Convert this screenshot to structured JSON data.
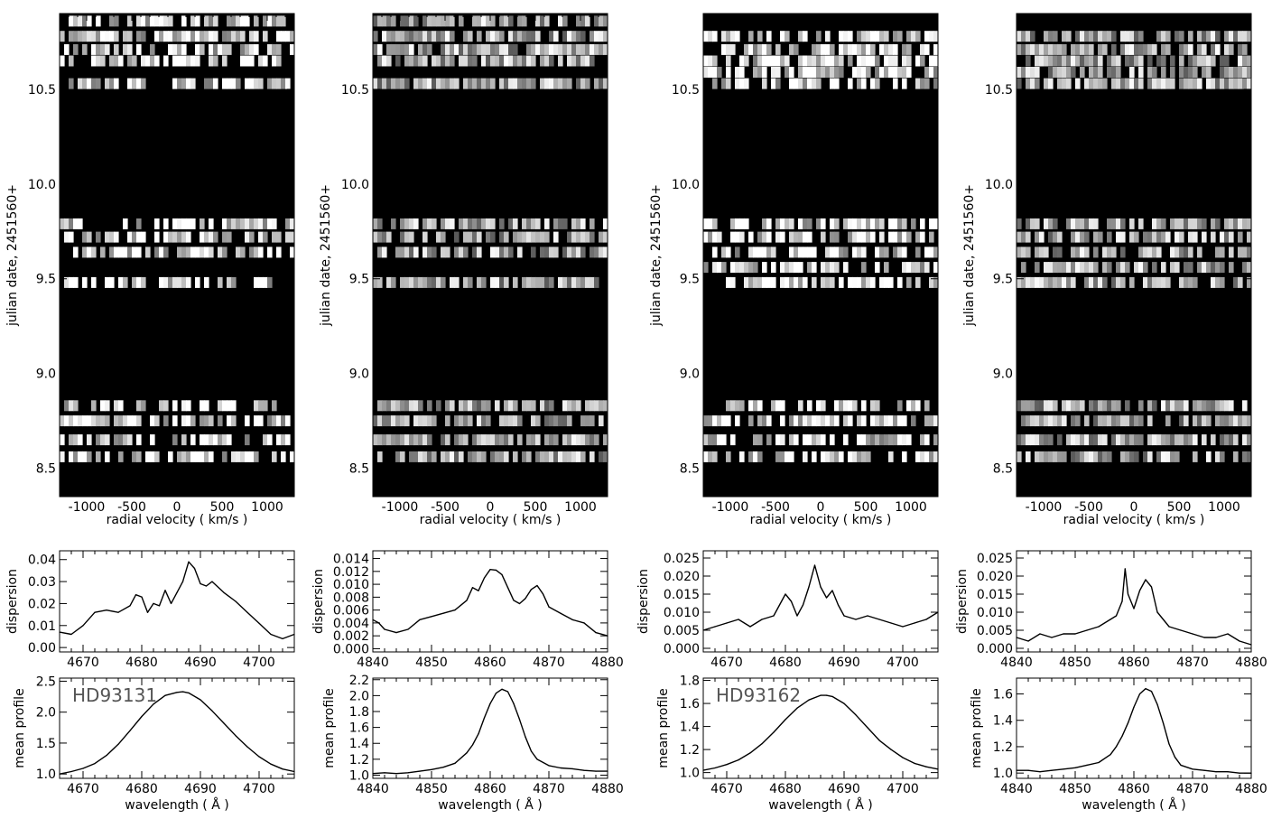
{
  "chart_data": [
    {
      "id": "heatmap-1",
      "type": "heatmap",
      "xlabel": "radial velocity ( km/s )",
      "ylabel": "julian date, 2451560+",
      "xlim": [
        -1300,
        1300
      ],
      "ylim": [
        8.35,
        10.9
      ],
      "xticks": [
        -1000,
        -500,
        0,
        500,
        1000
      ],
      "yticks": [
        8.5,
        9.0,
        9.5,
        10.0,
        10.5
      ],
      "ytick_labels": [
        "8.5",
        "9.0",
        "9.5",
        "10.0",
        "10.5"
      ],
      "rows": [
        8.56,
        8.65,
        8.75,
        8.83,
        9.48,
        9.64,
        9.72,
        9.79,
        10.53,
        10.65,
        10.71,
        10.78,
        10.86
      ],
      "colormap": "gray"
    },
    {
      "id": "heatmap-2",
      "type": "heatmap",
      "xlabel": "radial velocity ( km/s )",
      "ylabel": "julian date, 2451560+",
      "xlim": [
        -1300,
        1300
      ],
      "ylim": [
        8.35,
        10.9
      ],
      "xticks": [
        -1000,
        -500,
        0,
        500,
        1000
      ],
      "yticks": [
        8.5,
        9.0,
        9.5,
        10.0,
        10.5
      ],
      "ytick_labels": [
        "8.5",
        "9.0",
        "9.5",
        "10.0",
        "10.5"
      ],
      "rows": [
        8.56,
        8.65,
        8.75,
        8.83,
        9.48,
        9.64,
        9.72,
        9.79,
        10.53,
        10.65,
        10.71,
        10.78,
        10.86
      ],
      "colormap": "gray"
    },
    {
      "id": "heatmap-3",
      "type": "heatmap",
      "xlabel": "radial velocity ( km/s )",
      "ylabel": "julian date, 2451560+",
      "xlim": [
        -1300,
        1300
      ],
      "ylim": [
        8.35,
        10.9
      ],
      "xticks": [
        -1000,
        -500,
        0,
        500,
        1000
      ],
      "yticks": [
        8.5,
        9.0,
        9.5,
        10.0,
        10.5
      ],
      "ytick_labels": [
        "8.5",
        "9.0",
        "9.5",
        "10.0",
        "10.5"
      ],
      "rows": [
        8.56,
        8.65,
        8.75,
        8.83,
        9.48,
        9.56,
        9.64,
        9.72,
        9.79,
        10.53,
        10.59,
        10.65,
        10.71,
        10.78
      ],
      "colormap": "gray"
    },
    {
      "id": "heatmap-4",
      "type": "heatmap",
      "xlabel": "radial velocity ( km/s )",
      "ylabel": "julian date, 2451560+",
      "xlim": [
        -1300,
        1300
      ],
      "ylim": [
        8.35,
        10.9
      ],
      "xticks": [
        -1000,
        -500,
        0,
        500,
        1000
      ],
      "yticks": [
        8.5,
        9.0,
        9.5,
        10.0,
        10.5
      ],
      "ytick_labels": [
        "8.5",
        "9.0",
        "9.5",
        "10.0",
        "10.5"
      ],
      "rows": [
        8.56,
        8.65,
        8.75,
        8.83,
        9.48,
        9.56,
        9.64,
        9.72,
        9.79,
        10.53,
        10.59,
        10.65,
        10.71,
        10.78
      ],
      "colormap": "gray"
    },
    {
      "id": "dispersion-1",
      "type": "line",
      "xlabel": "",
      "ylabel": "dispersion",
      "xlim": [
        4666,
        4706
      ],
      "ylim": [
        -0.002,
        0.044
      ],
      "xticks": [
        4670,
        4680,
        4690,
        4700
      ],
      "xtick_labels": [
        "4670",
        "4680",
        "4690",
        "4700"
      ],
      "yticks": [
        0.0,
        0.01,
        0.02,
        0.03,
        0.04
      ],
      "ytick_labels": [
        "0.00",
        "0.01",
        "0.02",
        "0.03",
        "0.04"
      ],
      "x": [
        4666,
        4668,
        4670,
        4672,
        4674,
        4676,
        4678,
        4679,
        4680,
        4681,
        4682,
        4683,
        4684,
        4685,
        4686,
        4687,
        4688,
        4689,
        4690,
        4691,
        4692,
        4694,
        4696,
        4698,
        4700,
        4702,
        4704,
        4706
      ],
      "y": [
        0.007,
        0.006,
        0.01,
        0.016,
        0.017,
        0.016,
        0.019,
        0.024,
        0.023,
        0.016,
        0.02,
        0.019,
        0.026,
        0.02,
        0.025,
        0.03,
        0.039,
        0.036,
        0.029,
        0.028,
        0.03,
        0.025,
        0.021,
        0.016,
        0.011,
        0.006,
        0.004,
        0.006
      ]
    },
    {
      "id": "dispersion-2",
      "type": "line",
      "xlabel": "",
      "ylabel": "dispersion",
      "xlim": [
        4840,
        4880
      ],
      "ylim": [
        -0.0005,
        0.0152
      ],
      "xticks": [
        4840,
        4850,
        4860,
        4870,
        4880
      ],
      "xtick_labels": [
        "4840",
        "4850",
        "4860",
        "4870",
        "4880"
      ],
      "yticks": [
        0.0,
        0.002,
        0.004,
        0.006,
        0.008,
        0.01,
        0.012,
        0.014
      ],
      "ytick_labels": [
        "0.000",
        "0.002",
        "0.004",
        "0.006",
        "0.008",
        "0.010",
        "0.012",
        "0.014"
      ],
      "x": [
        4840,
        4841,
        4842,
        4844,
        4846,
        4848,
        4850,
        4852,
        4854,
        4856,
        4857,
        4858,
        4859,
        4860,
        4861,
        4862,
        4863,
        4864,
        4865,
        4866,
        4867,
        4868,
        4869,
        4870,
        4872,
        4874,
        4876,
        4878,
        4880
      ],
      "y": [
        0.0045,
        0.004,
        0.003,
        0.0025,
        0.003,
        0.0045,
        0.005,
        0.0055,
        0.006,
        0.0075,
        0.0095,
        0.009,
        0.011,
        0.0123,
        0.0122,
        0.0115,
        0.0095,
        0.0075,
        0.007,
        0.0078,
        0.0092,
        0.0098,
        0.0085,
        0.0065,
        0.0055,
        0.0045,
        0.004,
        0.0025,
        0.002
      ]
    },
    {
      "id": "dispersion-3",
      "type": "line",
      "xlabel": "",
      "ylabel": "dispersion",
      "xlim": [
        4666,
        4706
      ],
      "ylim": [
        -0.001,
        0.027
      ],
      "xticks": [
        4670,
        4680,
        4690,
        4700
      ],
      "xtick_labels": [
        "4670",
        "4680",
        "4690",
        "4700"
      ],
      "yticks": [
        0.0,
        0.005,
        0.01,
        0.015,
        0.02,
        0.025
      ],
      "ytick_labels": [
        "0.000",
        "0.005",
        "0.010",
        "0.015",
        "0.020",
        "0.025"
      ],
      "x": [
        4666,
        4668,
        4670,
        4672,
        4674,
        4676,
        4678,
        4679,
        4680,
        4681,
        4682,
        4683,
        4684,
        4685,
        4686,
        4687,
        4688,
        4689,
        4690,
        4692,
        4694,
        4696,
        4698,
        4700,
        4702,
        4704,
        4706
      ],
      "y": [
        0.005,
        0.006,
        0.007,
        0.008,
        0.006,
        0.008,
        0.009,
        0.012,
        0.015,
        0.013,
        0.009,
        0.012,
        0.017,
        0.023,
        0.017,
        0.014,
        0.016,
        0.012,
        0.009,
        0.008,
        0.009,
        0.008,
        0.007,
        0.006,
        0.007,
        0.008,
        0.01
      ]
    },
    {
      "id": "dispersion-4",
      "type": "line",
      "xlabel": "",
      "ylabel": "dispersion",
      "xlim": [
        4840,
        4880
      ],
      "ylim": [
        -0.001,
        0.027
      ],
      "xticks": [
        4840,
        4850,
        4860,
        4870,
        4880
      ],
      "xtick_labels": [
        "4840",
        "4850",
        "4860",
        "4870",
        "4880"
      ],
      "yticks": [
        0.0,
        0.005,
        0.01,
        0.015,
        0.02,
        0.025
      ],
      "ytick_labels": [
        "0.000",
        "0.005",
        "0.010",
        "0.015",
        "0.020",
        "0.025"
      ],
      "x": [
        4840,
        4842,
        4844,
        4846,
        4848,
        4850,
        4852,
        4854,
        4856,
        4857,
        4858,
        4858.5,
        4859,
        4860,
        4861,
        4862,
        4863,
        4864,
        4865,
        4866,
        4868,
        4870,
        4872,
        4874,
        4876,
        4878,
        4880
      ],
      "y": [
        0.003,
        0.002,
        0.004,
        0.003,
        0.004,
        0.004,
        0.005,
        0.006,
        0.008,
        0.009,
        0.013,
        0.022,
        0.015,
        0.011,
        0.016,
        0.019,
        0.017,
        0.01,
        0.008,
        0.006,
        0.005,
        0.004,
        0.003,
        0.003,
        0.004,
        0.002,
        0.001
      ]
    },
    {
      "id": "profile-1",
      "type": "line",
      "xlabel": "wavelength ( Å )",
      "ylabel": "mean profile",
      "annotation": "HD93131",
      "xlim": [
        4666,
        4706
      ],
      "ylim": [
        0.93,
        2.55
      ],
      "xticks": [
        4670,
        4680,
        4690,
        4700
      ],
      "xtick_labels": [
        "4670",
        "4680",
        "4690",
        "4700"
      ],
      "yticks": [
        1.0,
        1.5,
        2.0,
        2.5
      ],
      "ytick_labels": [
        "1.0",
        "1.5",
        "2.0",
        "2.5"
      ],
      "x": [
        4666,
        4668,
        4670,
        4672,
        4674,
        4676,
        4678,
        4680,
        4682,
        4684,
        4686,
        4687,
        4688,
        4690,
        4692,
        4694,
        4696,
        4698,
        4700,
        4702,
        4704,
        4706
      ],
      "y": [
        1.0,
        1.04,
        1.09,
        1.17,
        1.3,
        1.48,
        1.7,
        1.93,
        2.13,
        2.27,
        2.32,
        2.33,
        2.31,
        2.2,
        2.02,
        1.82,
        1.62,
        1.44,
        1.28,
        1.16,
        1.08,
        1.04
      ]
    },
    {
      "id": "profile-2",
      "type": "line",
      "xlabel": "wavelength ( Å )",
      "ylabel": "mean profile",
      "xlim": [
        4840,
        4880
      ],
      "ylim": [
        0.96,
        2.22
      ],
      "xticks": [
        4840,
        4850,
        4860,
        4870,
        4880
      ],
      "xtick_labels": [
        "4840",
        "4850",
        "4860",
        "4870",
        "4880"
      ],
      "yticks": [
        1.0,
        1.2,
        1.4,
        1.6,
        1.8,
        2.0,
        2.2
      ],
      "ytick_labels": [
        "1.0",
        "1.2",
        "1.4",
        "1.6",
        "1.8",
        "2.0",
        "2.2"
      ],
      "x": [
        4840,
        4842,
        4844,
        4846,
        4848,
        4850,
        4852,
        4854,
        4856,
        4857,
        4858,
        4859,
        4860,
        4861,
        4862,
        4863,
        4864,
        4865,
        4866,
        4867,
        4868,
        4870,
        4872,
        4874,
        4876,
        4878,
        4880
      ],
      "y": [
        1.02,
        1.03,
        1.02,
        1.03,
        1.05,
        1.07,
        1.1,
        1.15,
        1.28,
        1.38,
        1.52,
        1.72,
        1.9,
        2.03,
        2.08,
        2.05,
        1.9,
        1.7,
        1.48,
        1.3,
        1.2,
        1.12,
        1.09,
        1.08,
        1.06,
        1.05,
        1.05
      ]
    },
    {
      "id": "profile-3",
      "type": "line",
      "xlabel": "wavelength ( Å )",
      "ylabel": "mean profile",
      "annotation": "HD93162",
      "xlim": [
        4666,
        4706
      ],
      "ylim": [
        0.95,
        1.82
      ],
      "xticks": [
        4670,
        4680,
        4690,
        4700
      ],
      "xtick_labels": [
        "4670",
        "4680",
        "4690",
        "4700"
      ],
      "yticks": [
        1.0,
        1.2,
        1.4,
        1.6,
        1.8
      ],
      "ytick_labels": [
        "1.0",
        "1.2",
        "1.4",
        "1.6",
        "1.8"
      ],
      "x": [
        4666,
        4668,
        4670,
        4672,
        4674,
        4676,
        4678,
        4680,
        4682,
        4684,
        4686,
        4687,
        4688,
        4690,
        4692,
        4694,
        4696,
        4698,
        4700,
        4702,
        4704,
        4706
      ],
      "y": [
        1.02,
        1.04,
        1.07,
        1.11,
        1.17,
        1.25,
        1.35,
        1.46,
        1.56,
        1.63,
        1.67,
        1.67,
        1.66,
        1.6,
        1.5,
        1.39,
        1.28,
        1.2,
        1.13,
        1.08,
        1.05,
        1.03
      ]
    },
    {
      "id": "profile-4",
      "type": "line",
      "xlabel": "wavelength ( Å )",
      "ylabel": "mean profile",
      "xlim": [
        4840,
        4880
      ],
      "ylim": [
        0.96,
        1.72
      ],
      "xticks": [
        4840,
        4850,
        4860,
        4870,
        4880
      ],
      "xtick_labels": [
        "4840",
        "4850",
        "4860",
        "4870",
        "4880"
      ],
      "yticks": [
        1.0,
        1.2,
        1.4,
        1.6
      ],
      "ytick_labels": [
        "1.0",
        "1.2",
        "1.4",
        "1.6"
      ],
      "x": [
        4840,
        4842,
        4844,
        4846,
        4848,
        4850,
        4852,
        4854,
        4856,
        4857,
        4858,
        4859,
        4860,
        4861,
        4862,
        4863,
        4864,
        4865,
        4866,
        4867,
        4868,
        4870,
        4872,
        4874,
        4876,
        4878,
        4880
      ],
      "y": [
        1.02,
        1.02,
        1.01,
        1.02,
        1.03,
        1.04,
        1.06,
        1.08,
        1.14,
        1.2,
        1.28,
        1.38,
        1.5,
        1.6,
        1.64,
        1.62,
        1.52,
        1.38,
        1.22,
        1.12,
        1.06,
        1.03,
        1.02,
        1.01,
        1.01,
        1.0,
        1.0
      ]
    }
  ]
}
